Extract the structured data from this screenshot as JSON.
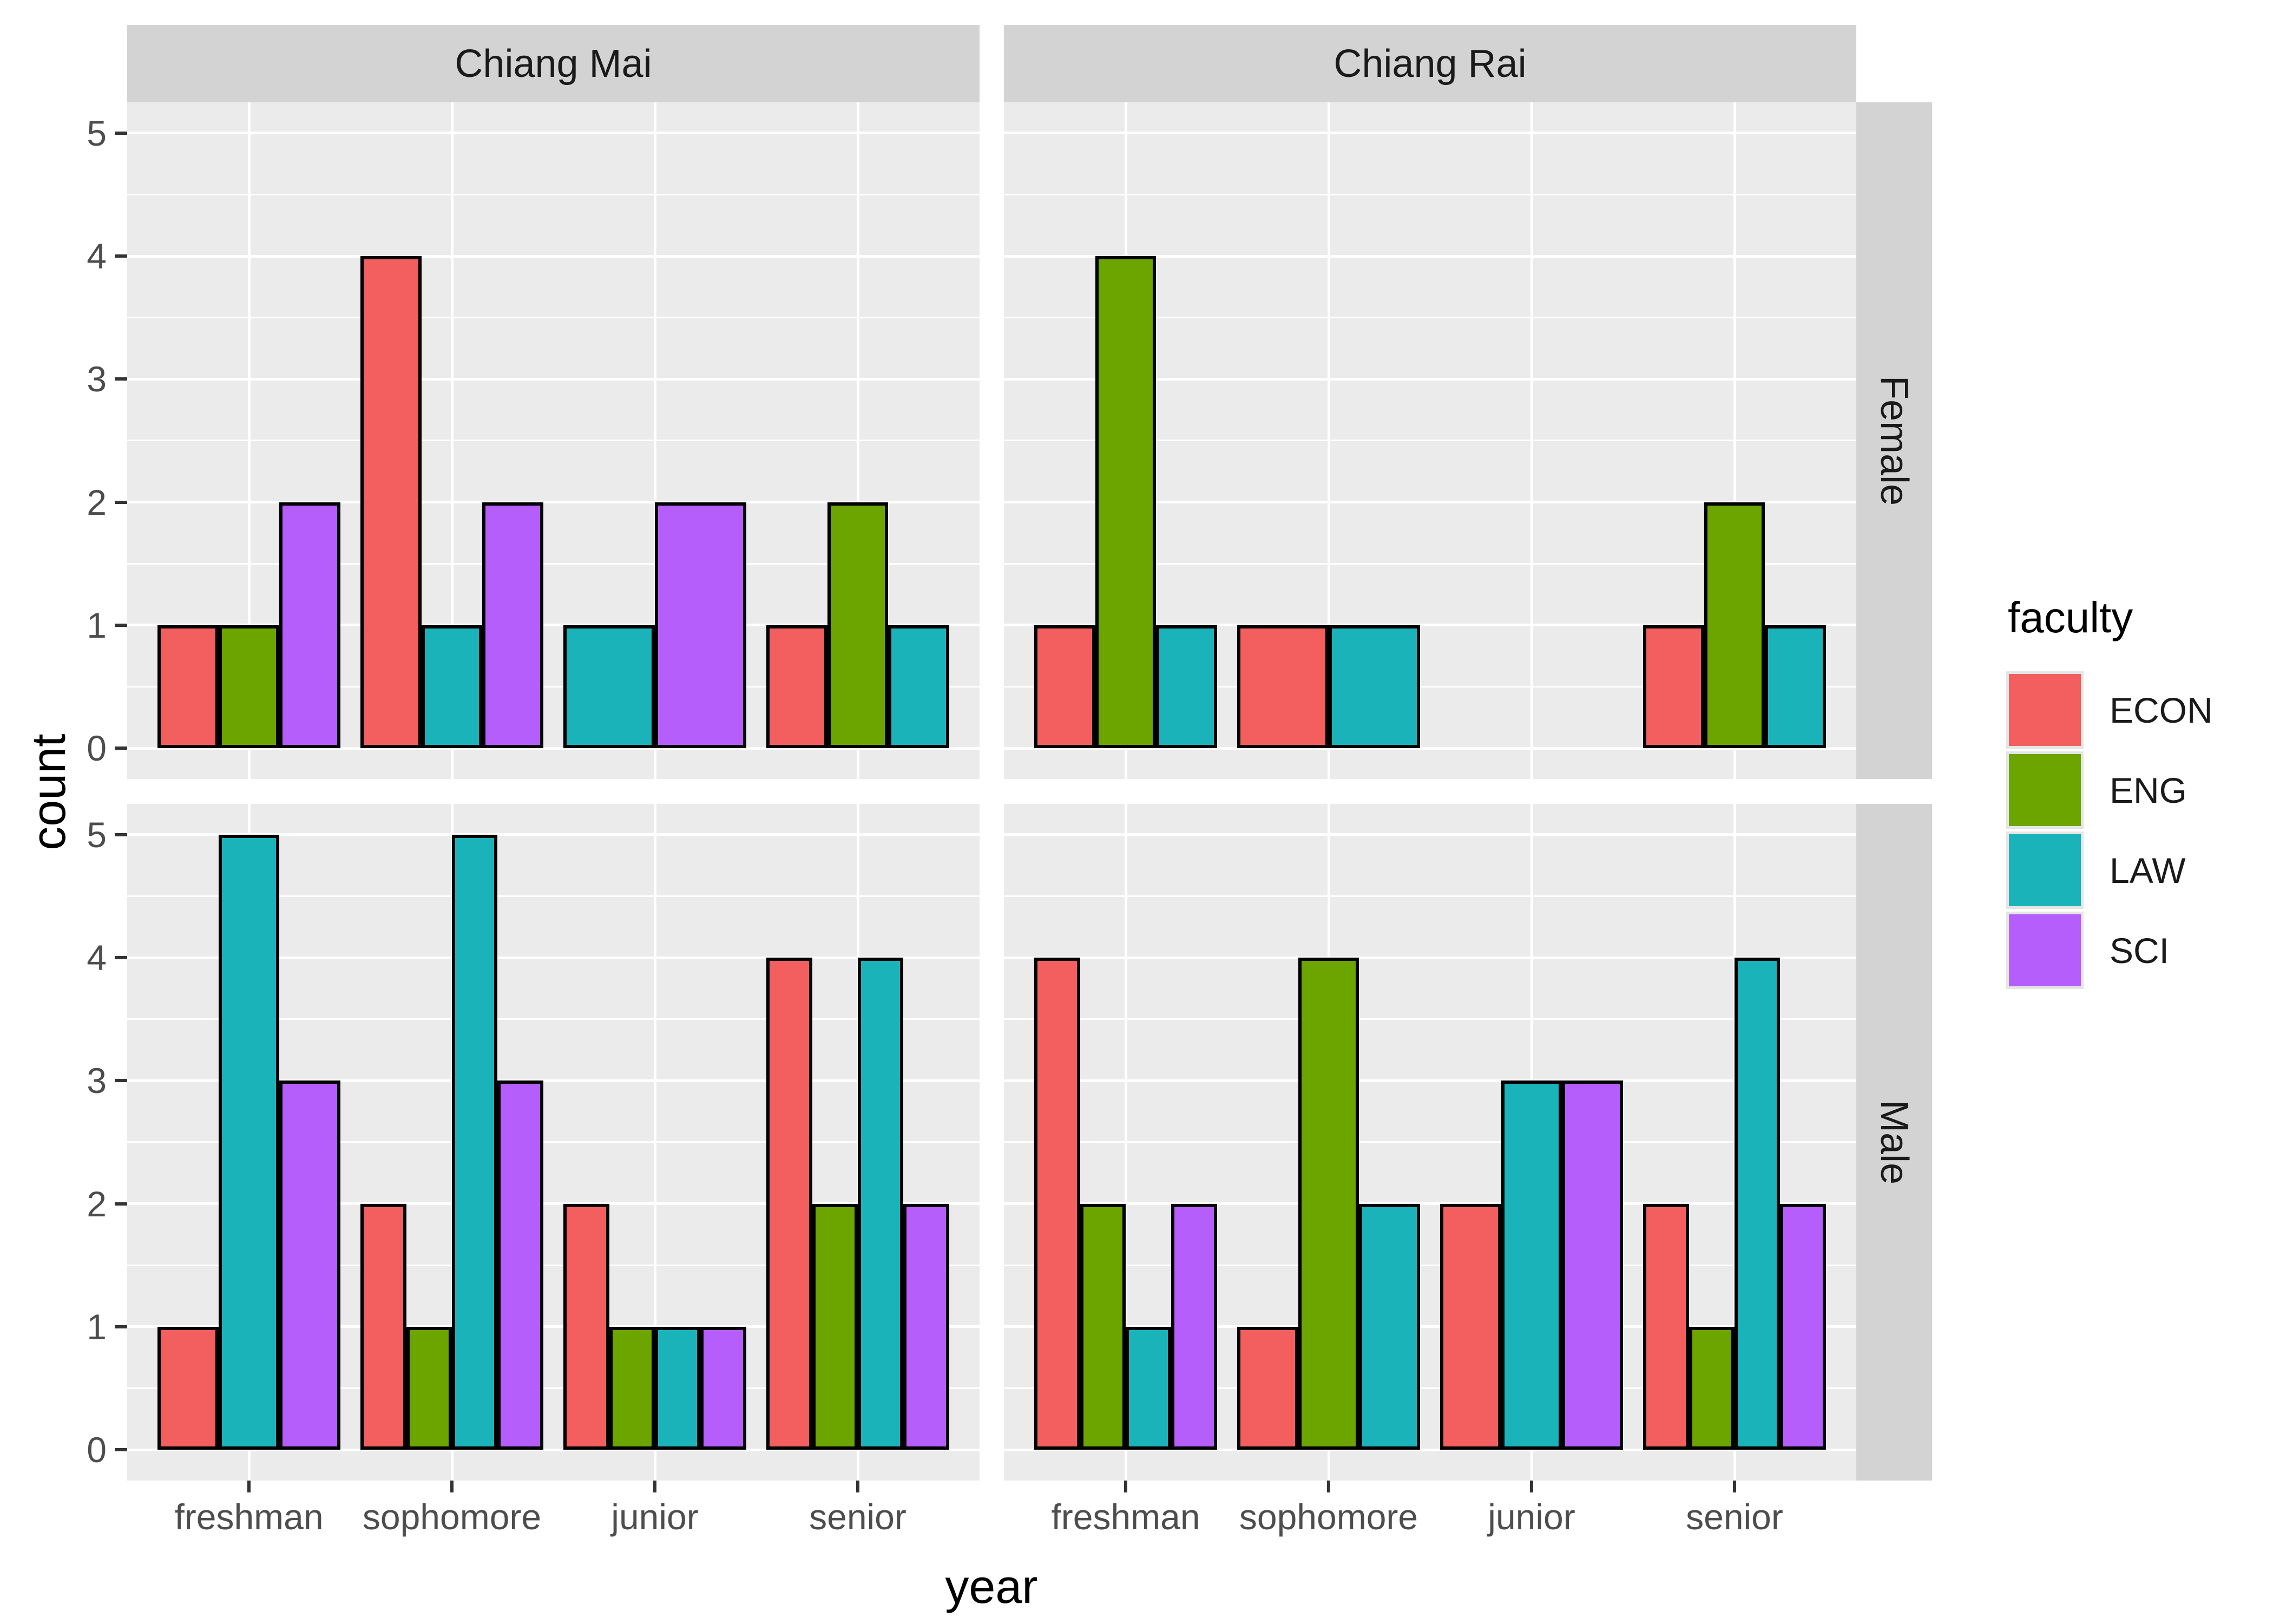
{
  "chart_data": {
    "type": "bar",
    "grouping": "dodge",
    "title": "",
    "xlabel": "year",
    "ylabel": "count",
    "legend_title": "faculty",
    "legend_position": "right",
    "categories": [
      "freshman",
      "sophomore",
      "junior",
      "senior"
    ],
    "series_levels": [
      "ECON",
      "ENG",
      "LAW",
      "SCI"
    ],
    "series_colors": {
      "ECON": "#F25F5E",
      "ENG": "#6CA400",
      "LAW": "#1AB3BA",
      "SCI": "#B55EFC"
    },
    "ylim": [
      0,
      5
    ],
    "yticks": [
      0,
      1,
      2,
      3,
      4,
      5
    ],
    "grid": "major-white+minor-white-half-steps",
    "facets": {
      "cols": [
        "Chiang Mai",
        "Chiang Rai"
      ],
      "rows": [
        "Female",
        "Male"
      ]
    },
    "panels": [
      {
        "col": "Chiang Mai",
        "row": "Female",
        "groups": [
          {
            "category": "freshman",
            "bars": [
              {
                "faculty": "ECON",
                "count": 1
              },
              {
                "faculty": "ENG",
                "count": 1
              },
              {
                "faculty": "SCI",
                "count": 2
              }
            ]
          },
          {
            "category": "sophomore",
            "bars": [
              {
                "faculty": "ECON",
                "count": 4
              },
              {
                "faculty": "LAW",
                "count": 1
              },
              {
                "faculty": "SCI",
                "count": 2
              }
            ]
          },
          {
            "category": "junior",
            "bars": [
              {
                "faculty": "LAW",
                "count": 1
              },
              {
                "faculty": "SCI",
                "count": 2
              }
            ]
          },
          {
            "category": "senior",
            "bars": [
              {
                "faculty": "ECON",
                "count": 1
              },
              {
                "faculty": "ENG",
                "count": 2
              },
              {
                "faculty": "LAW",
                "count": 1
              }
            ]
          }
        ]
      },
      {
        "col": "Chiang Rai",
        "row": "Female",
        "groups": [
          {
            "category": "freshman",
            "bars": [
              {
                "faculty": "ECON",
                "count": 1
              },
              {
                "faculty": "ENG",
                "count": 4
              },
              {
                "faculty": "LAW",
                "count": 1
              }
            ]
          },
          {
            "category": "sophomore",
            "bars": [
              {
                "faculty": "ECON",
                "count": 1
              },
              {
                "faculty": "LAW",
                "count": 1
              }
            ]
          },
          {
            "category": "junior",
            "bars": []
          },
          {
            "category": "senior",
            "bars": [
              {
                "faculty": "ECON",
                "count": 1
              },
              {
                "faculty": "ENG",
                "count": 2
              },
              {
                "faculty": "LAW",
                "count": 1
              }
            ]
          }
        ]
      },
      {
        "col": "Chiang Mai",
        "row": "Male",
        "groups": [
          {
            "category": "freshman",
            "bars": [
              {
                "faculty": "ECON",
                "count": 1
              },
              {
                "faculty": "LAW",
                "count": 5
              },
              {
                "faculty": "SCI",
                "count": 3
              }
            ]
          },
          {
            "category": "sophomore",
            "bars": [
              {
                "faculty": "ECON",
                "count": 2
              },
              {
                "faculty": "ENG",
                "count": 1
              },
              {
                "faculty": "LAW",
                "count": 5
              },
              {
                "faculty": "SCI",
                "count": 3
              }
            ]
          },
          {
            "category": "junior",
            "bars": [
              {
                "faculty": "ECON",
                "count": 2
              },
              {
                "faculty": "ENG",
                "count": 1
              },
              {
                "faculty": "LAW",
                "count": 1
              },
              {
                "faculty": "SCI",
                "count": 1
              }
            ]
          },
          {
            "category": "senior",
            "bars": [
              {
                "faculty": "ECON",
                "count": 4
              },
              {
                "faculty": "ENG",
                "count": 2
              },
              {
                "faculty": "LAW",
                "count": 4
              },
              {
                "faculty": "SCI",
                "count": 2
              }
            ]
          }
        ]
      },
      {
        "col": "Chiang Rai",
        "row": "Male",
        "groups": [
          {
            "category": "freshman",
            "bars": [
              {
                "faculty": "ECON",
                "count": 4
              },
              {
                "faculty": "ENG",
                "count": 2
              },
              {
                "faculty": "LAW",
                "count": 1
              },
              {
                "faculty": "SCI",
                "count": 2
              }
            ]
          },
          {
            "category": "sophomore",
            "bars": [
              {
                "faculty": "ECON",
                "count": 1
              },
              {
                "faculty": "ENG",
                "count": 4
              },
              {
                "faculty": "LAW",
                "count": 2
              }
            ]
          },
          {
            "category": "junior",
            "bars": [
              {
                "faculty": "ECON",
                "count": 2
              },
              {
                "faculty": "LAW",
                "count": 3
              },
              {
                "faculty": "SCI",
                "count": 3
              }
            ]
          },
          {
            "category": "senior",
            "bars": [
              {
                "faculty": "ECON",
                "count": 2
              },
              {
                "faculty": "ENG",
                "count": 1
              },
              {
                "faculty": "LAW",
                "count": 4
              },
              {
                "faculty": "SCI",
                "count": 2
              }
            ]
          }
        ]
      }
    ],
    "theme": {
      "panel_background": "#EBEBEB",
      "strip_background": "#D3D3D3",
      "gridline_color": "#FFFFFF",
      "bar_outline": "#000000",
      "axis_text_color": "#4D4D4D",
      "tick_mark_color": "#333333",
      "legend_key_background": "#E5E5E5"
    }
  }
}
